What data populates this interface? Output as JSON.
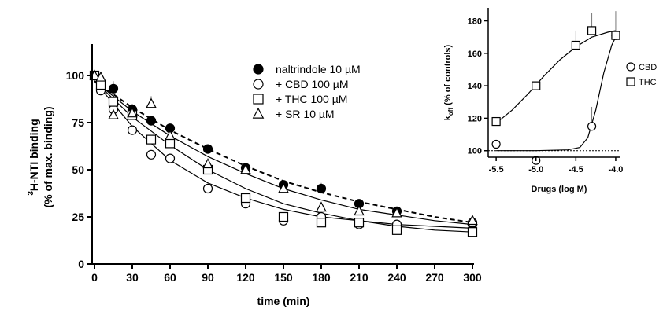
{
  "chart_data": [
    {
      "type": "scatter",
      "title": "",
      "xlabel": "time (min)",
      "ylabel_line1_super": "3",
      "ylabel_line1": "H-NTI binding",
      "ylabel_line2": "(% of max. binding)",
      "xlim": [
        0,
        300
      ],
      "ylim": [
        0,
        100
      ],
      "xticks": [
        0,
        30,
        60,
        90,
        120,
        150,
        180,
        210,
        240,
        270,
        300
      ],
      "yticks": [
        0,
        25,
        50,
        75,
        100
      ],
      "grid": false,
      "legend_position": "top-center",
      "series": [
        {
          "name": "naltrindole 10 µM",
          "marker": "filled-circle",
          "fit": "dashed",
          "x": [
            0,
            5,
            15,
            30,
            45,
            60,
            90,
            120,
            150,
            180,
            210,
            240,
            300
          ],
          "y": [
            100,
            93,
            93,
            82,
            76,
            72,
            61,
            51,
            42,
            40,
            32,
            28,
            21
          ],
          "err": [
            0,
            6,
            4,
            3,
            0,
            0,
            0,
            0,
            0,
            3,
            0,
            0,
            0
          ],
          "curve": [
            [
              0,
              97
            ],
            [
              30,
              83
            ],
            [
              60,
              71
            ],
            [
              90,
              61
            ],
            [
              120,
              52
            ],
            [
              150,
              44
            ],
            [
              180,
              38
            ],
            [
              210,
              33
            ],
            [
              240,
              29
            ],
            [
              270,
              25
            ],
            [
              300,
              22
            ]
          ]
        },
        {
          "name": "+ CBD 100 µM",
          "marker": "open-circle",
          "fit": "solid",
          "x": [
            0,
            5,
            15,
            30,
            45,
            60,
            90,
            120,
            150,
            180,
            210,
            240,
            300
          ],
          "y": [
            100,
            92,
            82,
            71,
            58,
            56,
            40,
            32,
            23,
            25,
            21,
            21,
            22
          ],
          "err": [
            0,
            0,
            0,
            0,
            0,
            0,
            0,
            0,
            0,
            0,
            0,
            0,
            0
          ],
          "curve": [
            [
              0,
              97
            ],
            [
              30,
              73
            ],
            [
              60,
              55
            ],
            [
              90,
              43
            ],
            [
              120,
              35
            ],
            [
              150,
              29
            ],
            [
              180,
              25
            ],
            [
              210,
              23
            ],
            [
              240,
              21
            ],
            [
              270,
              20
            ],
            [
              300,
              19
            ]
          ]
        },
        {
          "name": "+ THC 100 µM",
          "marker": "open-square",
          "fit": "solid",
          "x": [
            0,
            5,
            15,
            30,
            45,
            60,
            90,
            120,
            150,
            180,
            210,
            240,
            300
          ],
          "y": [
            100,
            95,
            86,
            79,
            66,
            64,
            50,
            35,
            25,
            22,
            22,
            18,
            17
          ],
          "err": [
            0,
            0,
            0,
            0,
            0,
            0,
            0,
            0,
            0,
            0,
            0,
            0,
            0
          ],
          "curve": [
            [
              0,
              97
            ],
            [
              30,
              78
            ],
            [
              60,
              63
            ],
            [
              90,
              50
            ],
            [
              120,
              40
            ],
            [
              150,
              32
            ],
            [
              180,
              27
            ],
            [
              210,
              23
            ],
            [
              240,
              20
            ],
            [
              270,
              18
            ],
            [
              300,
              17
            ]
          ]
        },
        {
          "name": "+ SR 10 µM",
          "marker": "open-triangle",
          "fit": "solid",
          "x": [
            0,
            5,
            15,
            30,
            45,
            60,
            90,
            120,
            150,
            180,
            210,
            240,
            300
          ],
          "y": [
            100,
            99,
            79,
            80,
            85,
            68,
            53,
            50,
            40,
            30,
            28,
            27,
            23
          ],
          "err": [
            0,
            0,
            0,
            0,
            4,
            0,
            3,
            0,
            0,
            0,
            0,
            0,
            0
          ],
          "curve": [
            [
              0,
              97
            ],
            [
              30,
              81
            ],
            [
              60,
              68
            ],
            [
              90,
              57
            ],
            [
              120,
              48
            ],
            [
              150,
              40
            ],
            [
              180,
              34
            ],
            [
              210,
              29
            ],
            [
              240,
              26
            ],
            [
              270,
              23
            ],
            [
              300,
              21
            ]
          ]
        }
      ]
    },
    {
      "type": "scatter",
      "title": "",
      "xlabel": "Drugs (log M)",
      "ylabel_main": "k",
      "ylabel_sub": "off",
      "ylabel_rest": " (% of controls)",
      "xlim": [
        -5.6,
        -3.95
      ],
      "ylim": [
        96,
        188
      ],
      "xticks": [
        "-5.5",
        "-5.0",
        "-4.5",
        "-4.0"
      ],
      "xtick_values": [
        -5.5,
        -5.0,
        -4.5,
        -4.0
      ],
      "yticks": [
        100,
        120,
        140,
        160,
        180
      ],
      "grid": false,
      "reference_line": 100,
      "legend_position": "right",
      "series": [
        {
          "name": "CBD",
          "marker": "open-circle",
          "x": [
            -5.5,
            -5.0,
            -4.3,
            -4.0
          ],
          "y": [
            104,
            94,
            115,
            171
          ],
          "err": [
            0,
            0,
            12,
            15
          ],
          "curve": [
            [
              -5.5,
              100
            ],
            [
              -5.0,
              100
            ],
            [
              -4.6,
              100.5
            ],
            [
              -4.45,
              102
            ],
            [
              -4.35,
              108
            ],
            [
              -4.25,
              125
            ],
            [
              -4.15,
              148
            ],
            [
              -4.05,
              165
            ],
            [
              -4.0,
              170
            ]
          ]
        },
        {
          "name": "THC",
          "marker": "open-square",
          "x": [
            -5.5,
            -5.0,
            -4.5,
            -4.3,
            -4.0
          ],
          "y": [
            118,
            140,
            165,
            174,
            171
          ],
          "err": [
            0,
            0,
            9,
            11,
            0
          ],
          "curve": [
            [
              -5.5,
              117
            ],
            [
              -5.3,
              125
            ],
            [
              -5.1,
              135
            ],
            [
              -4.9,
              146
            ],
            [
              -4.7,
              156
            ],
            [
              -4.5,
              164
            ],
            [
              -4.3,
              170
            ],
            [
              -4.1,
              173
            ],
            [
              -4.0,
              174
            ]
          ]
        }
      ]
    }
  ]
}
